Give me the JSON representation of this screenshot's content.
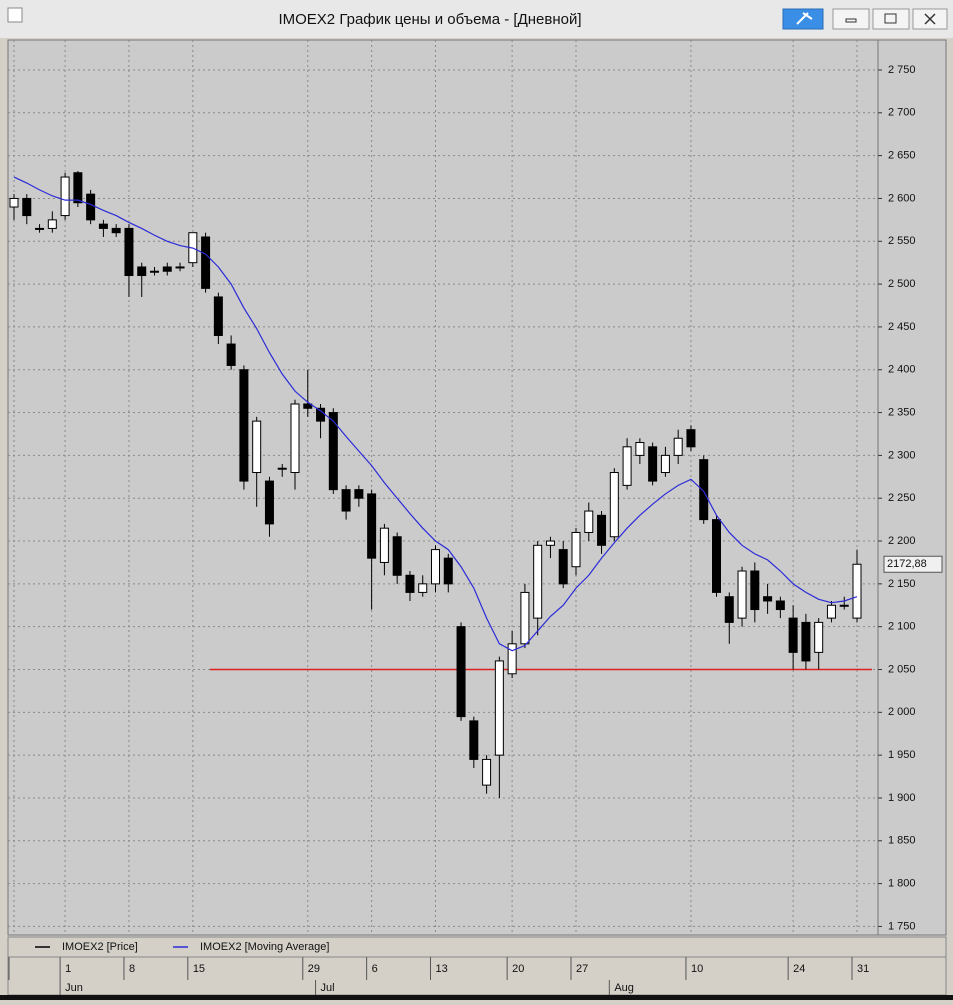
{
  "window": {
    "title": "IMOEX2 График цены и объема - [Дневной]"
  },
  "chart_data": {
    "type": "candlestick",
    "categories": [
      "",
      null,
      null,
      null,
      "1",
      null,
      null,
      null,
      null,
      "8",
      null,
      null,
      null,
      null,
      "15",
      null,
      null,
      null,
      null,
      null,
      null,
      null,
      null,
      "29",
      null,
      null,
      null,
      null,
      "6",
      null,
      null,
      null,
      null,
      "13",
      null,
      null,
      null,
      null,
      null,
      "20",
      null,
      null,
      null,
      null,
      "27",
      null,
      null,
      null,
      null,
      null,
      null,
      null,
      null,
      "10",
      null,
      null,
      null,
      null,
      null,
      null,
      null,
      "24",
      null,
      null,
      null,
      null,
      "31"
    ],
    "months": [
      null,
      null,
      null,
      null,
      "Jun",
      null,
      null,
      null,
      null,
      null,
      null,
      null,
      null,
      null,
      null,
      null,
      null,
      null,
      null,
      null,
      null,
      null,
      null,
      null,
      "Jul",
      null,
      null,
      null,
      null,
      null,
      null,
      null,
      null,
      null,
      null,
      null,
      null,
      null,
      null,
      null,
      null,
      null,
      null,
      null,
      null,
      null,
      null,
      "Aug",
      null,
      null,
      null,
      null,
      null,
      null,
      null,
      null,
      null,
      null,
      null,
      null,
      null,
      null,
      null,
      null,
      null,
      null,
      null
    ],
    "series": [
      {
        "name": "IMOEX2 [Price]",
        "color": "#000000",
        "open": [
          2590,
          2600,
          2565,
          2565,
          2580,
          2630,
          2605,
          2570,
          2565,
          2565,
          2520,
          2515,
          2520,
          2520,
          2525,
          2555,
          2485,
          2430,
          2400,
          2280,
          2270,
          2285,
          2280,
          2360,
          2355,
          2350,
          2260,
          2260,
          2255,
          2175,
          2205,
          2160,
          2140,
          2150,
          2180,
          2100,
          1990,
          1915,
          1950,
          2045,
          2080,
          2110,
          2195,
          2190,
          2170,
          2210,
          2230,
          2205,
          2265,
          2300,
          2310,
          2280,
          2300,
          2330,
          2295,
          2225,
          2135,
          2110,
          2165,
          2135,
          2130,
          2110,
          2105,
          2070,
          2110,
          2125,
          2110
        ],
        "high": [
          2605,
          2605,
          2570,
          2585,
          2630,
          2632,
          2610,
          2575,
          2570,
          2570,
          2525,
          2520,
          2525,
          2525,
          2560,
          2560,
          2490,
          2440,
          2405,
          2345,
          2275,
          2290,
          2365,
          2400,
          2360,
          2355,
          2265,
          2265,
          2260,
          2220,
          2210,
          2165,
          2160,
          2195,
          2185,
          2105,
          1995,
          1950,
          2065,
          2095,
          2150,
          2200,
          2205,
          2200,
          2215,
          2245,
          2235,
          2285,
          2320,
          2320,
          2315,
          2310,
          2330,
          2335,
          2300,
          2230,
          2140,
          2170,
          2175,
          2150,
          2135,
          2125,
          2115,
          2110,
          2130,
          2135,
          2190
        ],
        "low": [
          2575,
          2570,
          2560,
          2560,
          2575,
          2590,
          2570,
          2555,
          2555,
          2485,
          2485,
          2510,
          2510,
          2515,
          2520,
          2490,
          2430,
          2400,
          2260,
          2240,
          2205,
          2275,
          2260,
          2345,
          2320,
          2255,
          2225,
          2240,
          2120,
          2160,
          2150,
          2130,
          2135,
          2140,
          2140,
          1990,
          1935,
          1905,
          1900,
          2040,
          2075,
          2090,
          2180,
          2145,
          2160,
          2200,
          2185,
          2200,
          2260,
          2290,
          2265,
          2275,
          2290,
          2305,
          2220,
          2135,
          2080,
          2100,
          2105,
          2115,
          2110,
          2050,
          2050,
          2050,
          2105,
          2120,
          2105
        ],
        "close": [
          2600,
          2580,
          2565,
          2575,
          2625,
          2595,
          2575,
          2565,
          2560,
          2510,
          2510,
          2515,
          2515,
          2520,
          2560,
          2495,
          2440,
          2405,
          2270,
          2340,
          2220,
          2285,
          2360,
          2355,
          2340,
          2260,
          2235,
          2250,
          2180,
          2215,
          2160,
          2140,
          2150,
          2190,
          2150,
          1995,
          1945,
          1945,
          2060,
          2080,
          2140,
          2195,
          2200,
          2150,
          2210,
          2235,
          2195,
          2280,
          2310,
          2315,
          2270,
          2300,
          2320,
          2310,
          2225,
          2140,
          2105,
          2165,
          2120,
          2130,
          2120,
          2070,
          2060,
          2105,
          2125,
          2125,
          2172.88
        ]
      },
      {
        "name": "IMOEX2 [Moving Average]",
        "color": "#2b2bd8",
        "values": [
          2625,
          2618,
          2610,
          2603,
          2598,
          2598,
          2593,
          2586,
          2580,
          2572,
          2565,
          2557,
          2550,
          2545,
          2542,
          2535,
          2520,
          2500,
          2472,
          2448,
          2420,
          2395,
          2375,
          2362,
          2352,
          2340,
          2322,
          2305,
          2288,
          2268,
          2250,
          2232,
          2215,
          2200,
          2190,
          2170,
          2145,
          2110,
          2080,
          2072,
          2078,
          2095,
          2112,
          2125,
          2145,
          2160,
          2180,
          2198,
          2215,
          2230,
          2243,
          2255,
          2265,
          2272,
          2258,
          2230,
          2210,
          2195,
          2185,
          2178,
          2165,
          2150,
          2140,
          2132,
          2128,
          2130,
          2135
        ]
      }
    ],
    "last_price": {
      "value": 2172.88,
      "label": "2172,88"
    },
    "hline": {
      "value": 2050,
      "color": "#e02020"
    },
    "ylim": [
      1740,
      2785
    ],
    "yticks": [
      {
        "value": 1750,
        "label": "1 750"
      },
      {
        "value": 1800,
        "label": "1 800"
      },
      {
        "value": 1850,
        "label": "1 850"
      },
      {
        "value": 1900,
        "label": "1 900"
      },
      {
        "value": 1950,
        "label": "1 950"
      },
      {
        "value": 2000,
        "label": "2 000"
      },
      {
        "value": 2050,
        "label": "2 050"
      },
      {
        "value": 2100,
        "label": "2 100"
      },
      {
        "value": 2150,
        "label": "2 150"
      },
      {
        "value": 2200,
        "label": "2 200"
      },
      {
        "value": 2250,
        "label": "2 250"
      },
      {
        "value": 2300,
        "label": "2 300"
      },
      {
        "value": 2350,
        "label": "2 350"
      },
      {
        "value": 2400,
        "label": "2 400"
      },
      {
        "value": 2450,
        "label": "2 450"
      },
      {
        "value": 2500,
        "label": "2 500"
      },
      {
        "value": 2550,
        "label": "2 550"
      },
      {
        "value": 2600,
        "label": "2 600"
      },
      {
        "value": 2650,
        "label": "2 650"
      },
      {
        "value": 2700,
        "label": "2 700"
      },
      {
        "value": 2750,
        "label": "2 750"
      }
    ],
    "grid": true
  }
}
